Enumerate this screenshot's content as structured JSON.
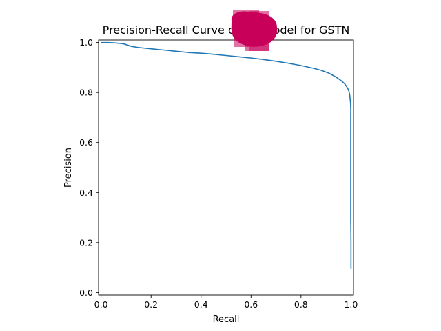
{
  "chart_data": {
    "type": "line",
    "title": "Precision-Recall Curve of the Model for GSTN",
    "xlabel": "Recall",
    "ylabel": "Precision",
    "xlim": [
      -0.01,
      1.01
    ],
    "ylim": [
      -0.01,
      1.01
    ],
    "xticks": [
      0.0,
      0.2,
      0.4,
      0.6,
      0.8,
      1.0
    ],
    "xtick_labels": [
      "0.0",
      "0.2",
      "0.4",
      "0.6",
      "0.8",
      "1.0"
    ],
    "yticks": [
      0.0,
      0.2,
      0.4,
      0.6,
      0.8,
      1.0
    ],
    "ytick_labels": [
      "0.0",
      "0.2",
      "0.4",
      "0.6",
      "0.8",
      "1.0"
    ],
    "grid": false,
    "series": [
      {
        "name": "precision-recall",
        "color": "#1f77b4",
        "x": [
          0.0,
          0.03,
          0.06,
          0.09,
          0.12,
          0.15,
          0.2,
          0.25,
          0.3,
          0.35,
          0.4,
          0.45,
          0.5,
          0.55,
          0.6,
          0.65,
          0.7,
          0.75,
          0.8,
          0.85,
          0.88,
          0.91,
          0.94,
          0.96,
          0.975,
          0.985,
          0.99,
          0.993,
          0.995,
          0.996,
          0.997,
          0.998,
          0.999,
          0.999,
          0.999,
          1.0,
          1.0,
          1.0
        ],
        "y": [
          1.0,
          1.0,
          0.998,
          0.995,
          0.985,
          0.98,
          0.975,
          0.97,
          0.965,
          0.96,
          0.957,
          0.953,
          0.948,
          0.943,
          0.938,
          0.932,
          0.925,
          0.917,
          0.908,
          0.897,
          0.889,
          0.878,
          0.862,
          0.848,
          0.835,
          0.82,
          0.81,
          0.8,
          0.79,
          0.78,
          0.77,
          0.76,
          0.74,
          0.6,
          0.3,
          0.2,
          0.12,
          0.095
        ]
      }
    ],
    "annotation": {
      "kind": "redaction-blob",
      "color": "#c8005a"
    }
  }
}
